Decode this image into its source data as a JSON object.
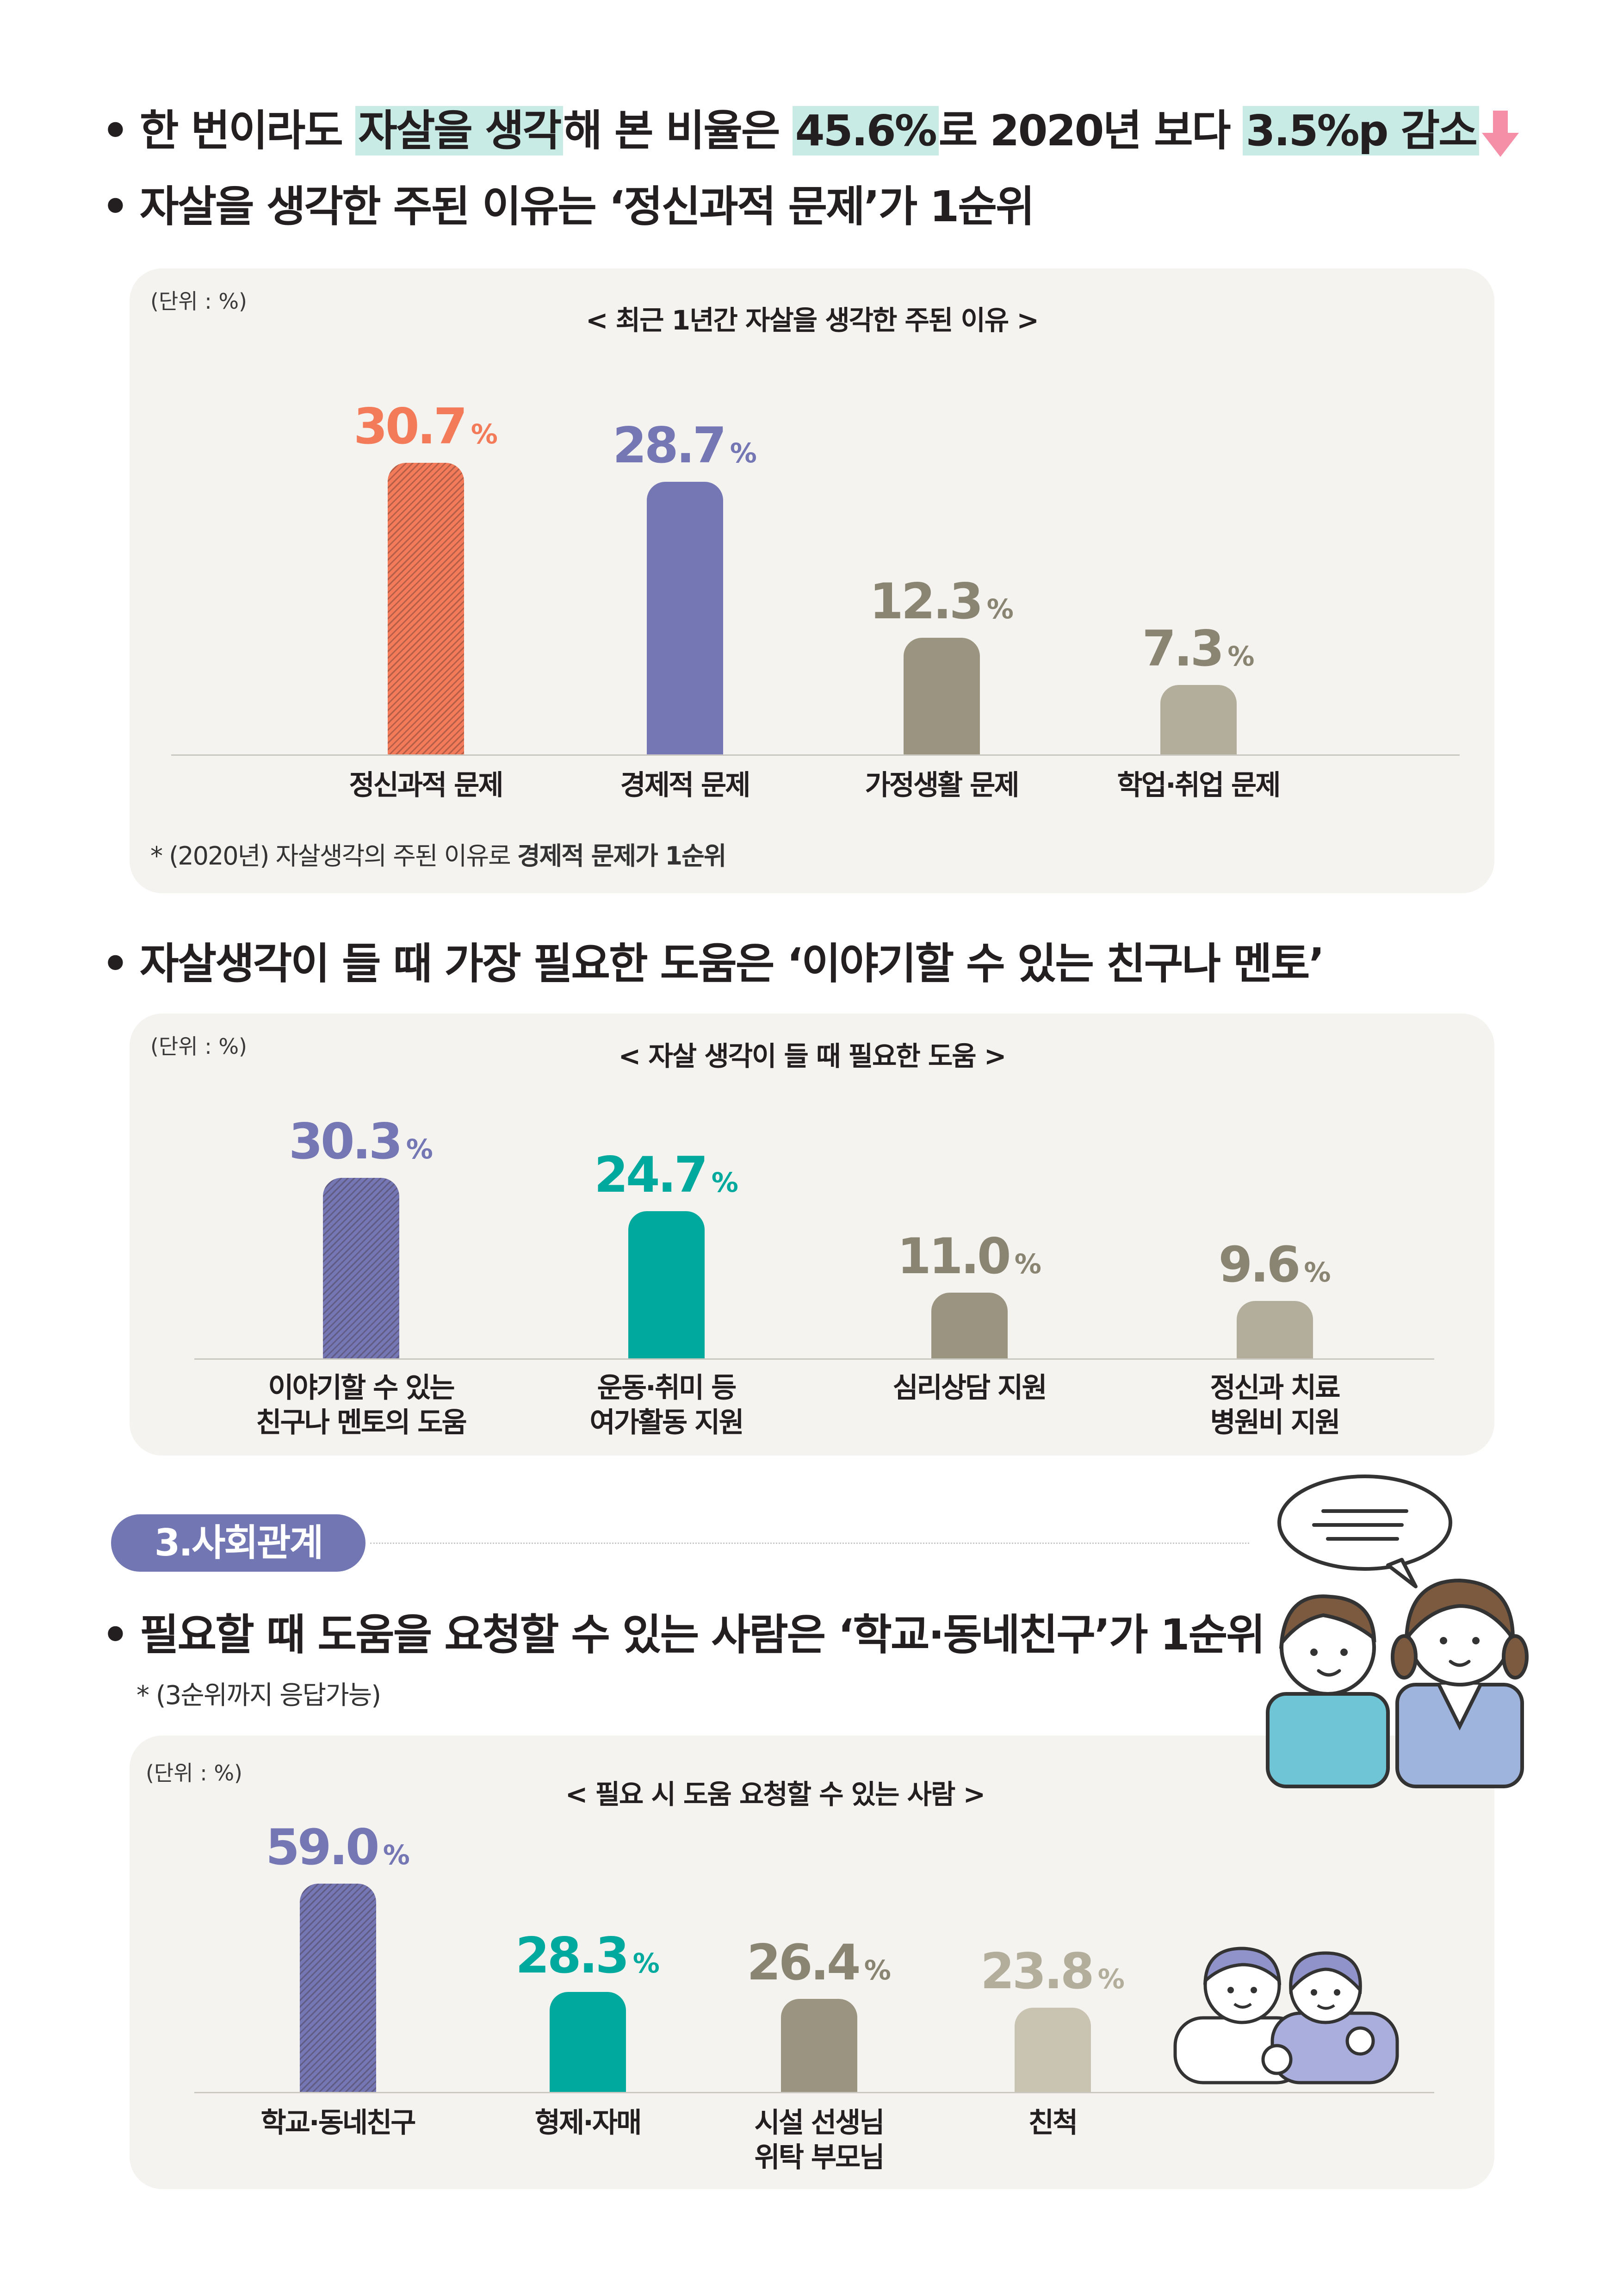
{
  "headlines": {
    "line1": {
      "prefix": "한 번이라도 ",
      "hl1": "자살을 생각",
      "mid1": "해 본 비율은 ",
      "hl2": "45.6%",
      "mid2": "로 2020년 보다 ",
      "hl3": "3.5%p 감소"
    },
    "line2": "자살을 생각한 주된 이유는 ‘정신과적 문제’가 1순위",
    "line3": "자살생각이 들 때 가장 필요한 도움은 ‘이야기할 수 있는 친구나 멘토’",
    "line4": "필요할 때 도움을 요청할 수 있는 사람은 ‘학교·동네친구’가 1순위"
  },
  "section": {
    "label": "3.사회관계"
  },
  "note_multi": "* (3순위까지 응답가능)",
  "chart_data": [
    {
      "type": "bar",
      "unit_label": "(단위 : %)",
      "title": "< 최근 1년간  자살을 생각한 주된 이유 >",
      "categories": [
        "정신과적 문제",
        "경제적 문제",
        "가정생활 문제",
        "학업·취업 문제"
      ],
      "values": [
        30.7,
        28.7,
        12.3,
        7.3
      ],
      "value_labels": [
        "30.7",
        "28.7",
        "12.3",
        "7.3"
      ],
      "percent_sign": "%",
      "colors": [
        "#f47b5a",
        "#7577b5",
        "#9b9480",
        "#b3ad9b"
      ],
      "label_colors": [
        "#f47b5a",
        "#7577b5",
        "#8a8472",
        "#8a8472"
      ],
      "hatched": [
        true,
        false,
        false,
        false
      ],
      "ylim": [
        0,
        30.7
      ],
      "note": {
        "prefix": "* (2020년) 자살생각의 주된 이유로 ",
        "bold": "경제적 문제가 1순위"
      }
    },
    {
      "type": "bar",
      "unit_label": "(단위 : %)",
      "title": "< 자살 생각이 들 때 필요한 도움 >",
      "categories": [
        "이야기할 수 있는\n친구나 멘토의 도움",
        "운동·취미 등\n여가활동 지원",
        "심리상담 지원",
        "정신과 치료\n병원비 지원"
      ],
      "values": [
        30.3,
        24.7,
        11.0,
        9.6
      ],
      "value_labels": [
        "30.3",
        "24.7",
        "11.0",
        "9.6"
      ],
      "percent_sign": "%",
      "colors": [
        "#7577b5",
        "#00a99d",
        "#9b9480",
        "#b3ad9b"
      ],
      "label_colors": [
        "#7577b5",
        "#00a99d",
        "#8a8472",
        "#8a8472"
      ],
      "hatched": [
        true,
        false,
        false,
        false
      ],
      "ylim": [
        0,
        30.3
      ]
    },
    {
      "type": "bar",
      "unit_label": "(단위 : %)",
      "title": "< 필요 시 도움 요청할 수 있는 사람 >",
      "categories": [
        "학교·동네친구",
        "형제·자매",
        "시설 선생님\n위탁 부모님",
        "친척"
      ],
      "values": [
        59.0,
        28.3,
        26.4,
        23.8
      ],
      "value_labels": [
        "59.0",
        "28.3",
        "26.4",
        "23.8"
      ],
      "percent_sign": "%",
      "colors": [
        "#7577b5",
        "#00a99d",
        "#9b9480",
        "#c9c3b2"
      ],
      "label_colors": [
        "#7577b5",
        "#00a99d",
        "#8a8472",
        "#b3ad9b"
      ],
      "hatched": [
        true,
        false,
        false,
        false
      ],
      "ylim": [
        0,
        59.0
      ]
    }
  ]
}
